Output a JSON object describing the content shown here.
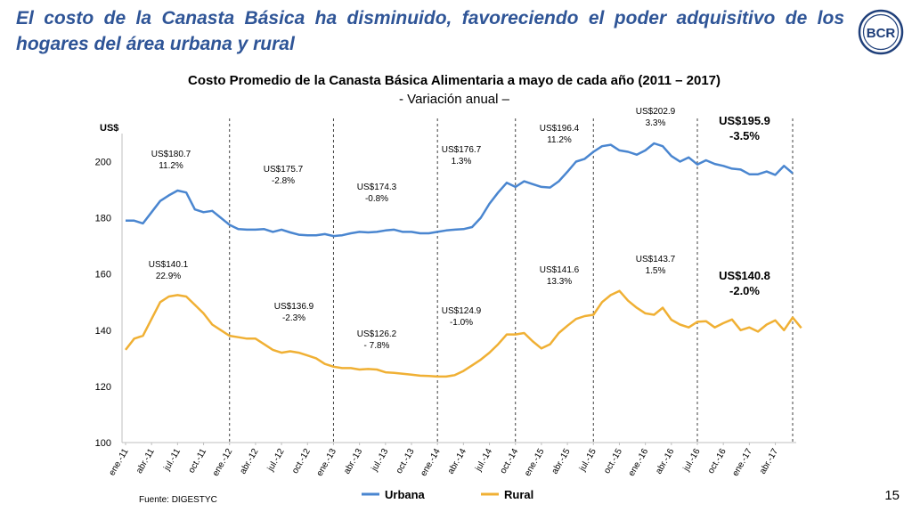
{
  "slide": {
    "headline": "El costo de la Canasta Básica ha disminuido, favoreciendo el poder adquisitivo de los hogares del área urbana y rural",
    "logo_text": "BCR",
    "source": "Fuente:  DIGESTYC",
    "page_number": "15"
  },
  "colors": {
    "urbana": "#4a86d0",
    "rural": "#f0b034",
    "headline": "#2f5597"
  },
  "chart_data": {
    "type": "line",
    "title": "Costo Promedio de la Canasta Básica Alimentaria a mayo de cada año (2011 – 2017)",
    "subtitle": "- Variación anual –",
    "ylabel": "US$",
    "ylim": [
      100,
      210
    ],
    "yticks": [
      100,
      120,
      140,
      160,
      180,
      200
    ],
    "xtick_labels": [
      "ene.-11",
      "abr.-11",
      "jul.-11",
      "oct.-11",
      "ene.-12",
      "abr.-12",
      "jul.-12",
      "oct.-12",
      "ene.-13",
      "abr.-13",
      "jul.-13",
      "oct.-13",
      "ene.-14",
      "abr.-14",
      "jul.-14",
      "oct.-14",
      "ene.-15",
      "abr.-15",
      "jul.-15",
      "oct.-15",
      "ene.-16",
      "abr.-16",
      "jul.-16",
      "oct.-16",
      "ene.-17",
      "abr.-17"
    ],
    "series": [
      {
        "name": "Urbana",
        "values": [
          179,
          179,
          178,
          182,
          186,
          188,
          189.7,
          189,
          183,
          182,
          182.5,
          180,
          177.5,
          176,
          175.8,
          175.8,
          176,
          175,
          175.8,
          174.8,
          174,
          173.8,
          173.8,
          174.2,
          173.5,
          173.8,
          174.5,
          175,
          174.8,
          175,
          175.5,
          175.8,
          175,
          175,
          174.5,
          174.5,
          175,
          175.5,
          175.8,
          176,
          176.7,
          180,
          185,
          189,
          192.5,
          191,
          193,
          192,
          191,
          190.8,
          193,
          196.4,
          200,
          201,
          203.5,
          205.5,
          206,
          204,
          203.5,
          202.5,
          204,
          206.5,
          205.5,
          202,
          200,
          201.5,
          199,
          200.5,
          199.2,
          198.5,
          197.5,
          197.2,
          195.5,
          195.5,
          196.5,
          195.3,
          198.5,
          195.9
        ]
      },
      {
        "name": "Rural",
        "values": [
          133,
          137,
          138,
          144,
          150,
          152,
          152.5,
          152,
          149,
          146,
          142,
          140,
          138,
          137.5,
          137,
          137,
          135,
          133,
          132,
          132.5,
          132,
          131,
          130,
          128,
          127,
          126.5,
          126.5,
          126,
          126.2,
          126,
          125,
          124.8,
          124.5,
          124.2,
          123.8,
          123.7,
          123.5,
          123.5,
          124,
          125.5,
          127.5,
          129.5,
          132,
          135,
          138.5,
          138.5,
          139,
          136,
          133.5,
          135,
          139,
          141.6,
          144,
          145,
          145.5,
          150,
          152.5,
          154,
          150.5,
          148,
          146,
          145.5,
          148,
          143.7,
          142,
          141,
          143,
          143.2,
          141,
          142.5,
          143.8,
          140,
          141,
          139.5,
          142,
          143.5,
          140,
          144.5,
          140.8
        ]
      }
    ],
    "vlines_at": [
      "ene.-12",
      "ene.-13",
      "ene.-14",
      "oct.-14",
      "jul.-15",
      "jul.-16",
      "may.-17"
    ],
    "annotations": [
      {
        "series": "Urbana",
        "value": "US$180.7",
        "change": "11.2%"
      },
      {
        "series": "Urbana",
        "value": "US$175.7",
        "change": "-2.8%"
      },
      {
        "series": "Urbana",
        "value": "US$174.3",
        "change": "-0.8%"
      },
      {
        "series": "Urbana",
        "value": "US$176.7",
        "change": "1.3%"
      },
      {
        "series": "Urbana",
        "value": "US$196.4",
        "change": "11.2%"
      },
      {
        "series": "Urbana",
        "value": "US$202.9",
        "change": "3.3%"
      },
      {
        "series": "Urbana",
        "value": "US$195.9",
        "change": "-3.5%",
        "bold": true
      },
      {
        "series": "Rural",
        "value": "US$140.1",
        "change": "22.9%"
      },
      {
        "series": "Rural",
        "value": "US$136.9",
        "change": "-2.3%"
      },
      {
        "series": "Rural",
        "value": "US$126.2",
        "change": "- 7.8%"
      },
      {
        "series": "Rural",
        "value": "US$124.9",
        "change": "-1.0%"
      },
      {
        "series": "Rural",
        "value": "US$141.6",
        "change": "13.3%"
      },
      {
        "series": "Rural",
        "value": "US$143.7",
        "change": "1.5%"
      },
      {
        "series": "Rural",
        "value": "US$140.8",
        "change": "-2.0%",
        "bold": true
      }
    ],
    "legend_position": "bottom"
  }
}
